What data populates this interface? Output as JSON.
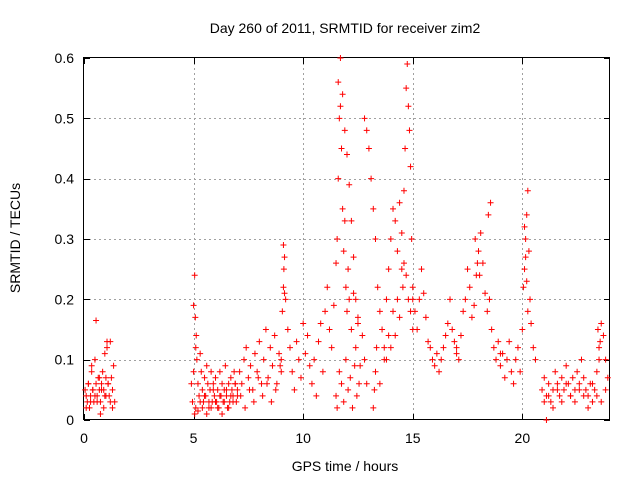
{
  "chart_data": {
    "type": "scatter",
    "title": "Day 260 of 2011, SRMTID for receiver zim2",
    "xlabel": "GPS time / hours",
    "ylabel": "SRMTID / TECUs",
    "xlim": [
      0,
      24
    ],
    "ylim": [
      0,
      0.6
    ],
    "xticks": [
      0,
      5,
      10,
      15,
      20
    ],
    "xtick_labels": [
      "0",
      "5",
      "10",
      "15",
      "20"
    ],
    "yticks": [
      0,
      0.1,
      0.2,
      0.3,
      0.4,
      0.5,
      0.6
    ],
    "ytick_labels": [
      "0",
      "0.1",
      "0.2",
      "0.3",
      "0.4",
      "0.5",
      "0.6"
    ],
    "grid": true,
    "marker": "+",
    "color": "#ff0000",
    "series": [
      {
        "name": "SRMTID",
        "x": [
          0.05,
          0.1,
          0.15,
          0.2,
          0.25,
          0.3,
          0.35,
          0.4,
          0.45,
          0.5,
          0.55,
          0.6,
          0.65,
          0.7,
          0.75,
          0.8,
          0.85,
          0.9,
          0.95,
          1.0,
          1.05,
          1.1,
          1.15,
          1.2,
          1.25,
          1.3,
          1.35,
          1.4,
          0.1,
          0.2,
          0.3,
          0.4,
          0.5,
          0.6,
          0.7,
          0.8,
          0.9,
          1.0,
          1.1,
          1.2,
          1.3,
          0.55,
          0.95,
          1.05,
          0.35,
          0.75,
          4.9,
          4.95,
          5.0,
          5.05,
          5.1,
          5.15,
          5.2,
          5.25,
          5.3,
          5.35,
          5.4,
          5.45,
          5.5,
          5.55,
          5.6,
          5.65,
          5.7,
          5.75,
          5.8,
          5.85,
          5.9,
          5.95,
          6.0,
          6.05,
          6.1,
          6.15,
          6.2,
          6.25,
          6.3,
          6.35,
          6.4,
          6.45,
          6.5,
          6.55,
          6.6,
          6.65,
          6.7,
          6.75,
          6.8,
          6.85,
          6.9,
          6.95,
          7.0,
          5.05,
          5.1,
          5.2,
          5.3,
          5.4,
          5.5,
          5.6,
          5.7,
          5.8,
          5.9,
          6.0,
          6.1,
          6.2,
          6.3,
          6.4,
          6.5,
          6.6,
          6.7,
          6.8,
          6.9,
          7.0,
          5.0,
          5.08,
          5.12,
          7.1,
          7.2,
          7.3,
          7.4,
          7.5,
          7.6,
          7.7,
          7.8,
          7.9,
          8.0,
          8.1,
          8.2,
          8.3,
          8.4,
          8.5,
          8.6,
          8.7,
          8.8,
          8.9,
          9.0,
          7.15,
          7.35,
          7.55,
          7.75,
          7.95,
          8.15,
          8.35,
          8.55,
          8.75,
          8.95,
          9.0,
          9.05,
          9.1,
          9.15,
          9.2,
          9.3,
          9.4,
          9.5,
          9.6,
          9.7,
          9.8,
          9.9,
          10.0,
          10.1,
          10.2,
          10.3,
          10.4,
          10.5,
          10.6,
          10.7,
          10.8,
          10.9,
          9.1,
          9.12,
          9.15,
          11.0,
          11.1,
          11.2,
          11.3,
          11.4,
          11.5,
          11.55,
          11.6,
          11.65,
          11.7,
          11.75,
          11.8,
          11.85,
          11.9,
          11.95,
          12.0,
          12.05,
          12.1,
          12.2,
          12.3,
          12.4,
          12.5,
          12.6,
          12.7,
          12.8,
          12.9,
          11.6,
          11.7,
          11.8,
          11.9,
          12.0,
          12.1,
          12.2,
          12.3,
          12.4,
          12.5,
          11.5,
          11.55,
          11.65,
          11.75,
          11.85,
          11.95,
          12.05,
          12.15,
          12.25,
          12.35,
          12.45,
          12.55,
          12.8,
          12.9,
          13.0,
          13.1,
          13.2,
          13.3,
          13.4,
          13.5,
          13.6,
          13.7,
          13.8,
          13.9,
          14.0,
          14.1,
          14.2,
          14.3,
          14.4,
          14.5,
          14.6,
          14.7,
          14.8,
          14.9,
          15.0,
          13.2,
          13.25,
          13.3,
          13.35,
          13.5,
          13.7,
          13.9,
          14.1,
          14.3,
          14.5,
          14.6,
          14.65,
          14.7,
          14.75,
          14.8,
          14.85,
          14.9,
          14.95,
          15.0,
          14.55,
          14.4,
          14.2,
          14.0,
          13.8,
          15.0,
          15.1,
          15.2,
          15.3,
          15.4,
          15.5,
          15.6,
          15.7,
          15.8,
          15.9,
          16.0,
          16.1,
          16.2,
          16.3,
          16.4,
          16.5,
          16.6,
          16.7,
          16.8,
          16.9,
          17.0,
          17.0,
          17.1,
          17.2,
          17.3,
          17.4,
          17.5,
          17.6,
          17.7,
          17.8,
          17.9,
          18.0,
          18.1,
          18.2,
          18.3,
          18.4,
          18.5,
          18.6,
          18.7,
          18.8,
          18.9,
          19.0,
          17.85,
          17.95,
          18.05,
          18.45,
          18.55,
          19.0,
          19.1,
          19.2,
          19.3,
          19.4,
          19.5,
          19.6,
          19.7,
          19.8,
          19.9,
          20.0,
          20.05,
          20.1,
          20.15,
          20.2,
          20.25,
          20.3,
          20.35,
          20.4,
          20.5,
          20.6,
          20.1,
          20.15,
          20.2,
          20.25,
          20.9,
          21.0,
          21.1,
          21.2,
          21.3,
          21.4,
          21.5,
          21.6,
          21.7,
          21.8,
          21.9,
          22.0,
          22.1,
          22.2,
          22.3,
          22.4,
          22.5,
          22.6,
          22.7,
          22.8,
          22.9,
          23.0,
          23.1,
          23.2,
          23.3,
          23.4,
          23.5,
          23.6,
          23.7,
          23.8,
          23.9,
          21.0,
          21.2,
          21.4,
          21.6,
          21.8,
          22.0,
          22.2,
          22.4,
          22.6,
          22.8,
          23.0,
          23.2,
          23.4,
          23.6,
          23.8,
          23.5,
          23.55,
          23.45,
          21.1
        ],
        "y": [
          0.05,
          0.04,
          0.03,
          0.06,
          0.02,
          0.04,
          0.08,
          0.05,
          0.03,
          0.1,
          0.06,
          0.04,
          0.07,
          0.05,
          0.03,
          0.06,
          0.08,
          0.05,
          0.04,
          0.07,
          0.12,
          0.06,
          0.04,
          0.03,
          0.07,
          0.05,
          0.09,
          0.03,
          0.02,
          0.06,
          0.03,
          0.05,
          0.04,
          0.03,
          0.07,
          0.05,
          0.02,
          0.04,
          0.06,
          0.13,
          0.02,
          0.165,
          0.11,
          0.13,
          0.09,
          0.01,
          0.06,
          0.03,
          0.08,
          0.24,
          0.12,
          0.1,
          0.06,
          0.04,
          0.11,
          0.08,
          0.05,
          0.03,
          0.07,
          0.04,
          0.09,
          0.06,
          0.02,
          0.05,
          0.08,
          0.03,
          0.06,
          0.04,
          0.07,
          0.03,
          0.05,
          0.02,
          0.08,
          0.04,
          0.06,
          0.03,
          0.05,
          0.09,
          0.04,
          0.02,
          0.06,
          0.03,
          0.07,
          0.05,
          0.04,
          0.08,
          0.06,
          0.03,
          0.05,
          0.01,
          0.02,
          0.015,
          0.03,
          0.02,
          0.04,
          0.01,
          0.03,
          0.02,
          0.05,
          0.03,
          0.02,
          0.04,
          0.01,
          0.03,
          0.05,
          0.02,
          0.04,
          0.03,
          0.06,
          0.04,
          0.19,
          0.17,
          0.14,
          0.08,
          0.06,
          0.1,
          0.12,
          0.07,
          0.09,
          0.05,
          0.11,
          0.08,
          0.13,
          0.06,
          0.1,
          0.15,
          0.07,
          0.12,
          0.09,
          0.14,
          0.06,
          0.11,
          0.08,
          0.04,
          0.02,
          0.05,
          0.03,
          0.07,
          0.04,
          0.06,
          0.03,
          0.05,
          0.09,
          0.1,
          0.18,
          0.29,
          0.27,
          0.2,
          0.15,
          0.12,
          0.08,
          0.05,
          0.13,
          0.1,
          0.07,
          0.16,
          0.11,
          0.14,
          0.09,
          0.06,
          0.1,
          0.04,
          0.13,
          0.16,
          0.08,
          0.22,
          0.25,
          0.21,
          0.18,
          0.22,
          0.15,
          0.12,
          0.19,
          0.26,
          0.3,
          0.4,
          0.5,
          0.52,
          0.45,
          0.35,
          0.28,
          0.33,
          0.22,
          0.18,
          0.25,
          0.2,
          0.15,
          0.21,
          0.12,
          0.17,
          0.09,
          0.14,
          0.1,
          0.06,
          0.56,
          0.6,
          0.54,
          0.48,
          0.44,
          0.39,
          0.33,
          0.27,
          0.2,
          0.16,
          0.04,
          0.02,
          0.08,
          0.06,
          0.03,
          0.1,
          0.05,
          0.07,
          0.02,
          0.09,
          0.04,
          0.06,
          0.5,
          0.48,
          0.45,
          0.4,
          0.35,
          0.3,
          0.22,
          0.18,
          0.15,
          0.12,
          0.2,
          0.25,
          0.3,
          0.35,
          0.33,
          0.28,
          0.36,
          0.31,
          0.26,
          0.24,
          0.2,
          0.18,
          0.15,
          0.02,
          0.05,
          0.08,
          0.12,
          0.06,
          0.1,
          0.14,
          0.18,
          0.2,
          0.25,
          0.38,
          0.45,
          0.55,
          0.59,
          0.52,
          0.48,
          0.42,
          0.3,
          0.2,
          0.22,
          0.17,
          0.14,
          0.12,
          0.1,
          0.22,
          0.18,
          0.15,
          0.2,
          0.25,
          0.21,
          0.17,
          0.13,
          0.12,
          0.1,
          0.09,
          0.11,
          0.08,
          0.1,
          0.12,
          0.14,
          0.16,
          0.2,
          0.15,
          0.13,
          0.11,
          0.12,
          0.1,
          0.14,
          0.18,
          0.2,
          0.25,
          0.22,
          0.17,
          0.19,
          0.24,
          0.28,
          0.31,
          0.26,
          0.21,
          0.18,
          0.2,
          0.15,
          0.12,
          0.1,
          0.13,
          0.11,
          0.3,
          0.26,
          0.24,
          0.34,
          0.36,
          0.09,
          0.11,
          0.07,
          0.1,
          0.13,
          0.08,
          0.06,
          0.1,
          0.12,
          0.08,
          0.15,
          0.22,
          0.25,
          0.3,
          0.34,
          0.38,
          0.28,
          0.2,
          0.16,
          0.12,
          0.1,
          0.32,
          0.27,
          0.23,
          0.18,
          0.05,
          0.07,
          0.04,
          0.06,
          0.03,
          0.05,
          0.08,
          0.06,
          0.04,
          0.07,
          0.05,
          0.09,
          0.06,
          0.04,
          0.07,
          0.05,
          0.08,
          0.06,
          0.1,
          0.07,
          0.05,
          0.04,
          0.06,
          0.03,
          0.05,
          0.08,
          0.12,
          0.16,
          0.14,
          0.1,
          0.07,
          0.03,
          0.04,
          0.02,
          0.05,
          0.03,
          0.06,
          0.04,
          0.03,
          0.05,
          0.04,
          0.02,
          0.06,
          0.04,
          0.03,
          0.05,
          0.1,
          0.13,
          0.15,
          0.0
        ]
      }
    ]
  }
}
